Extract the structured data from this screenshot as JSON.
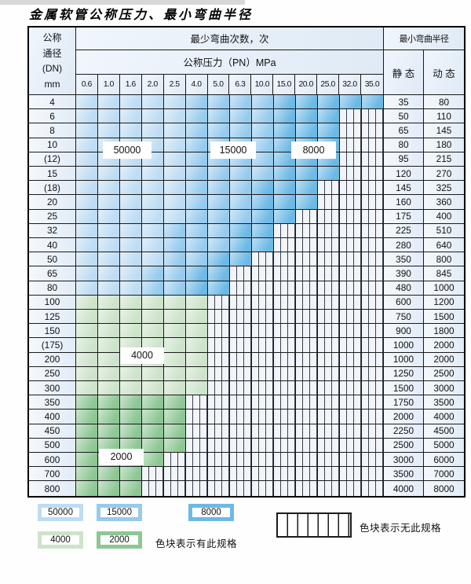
{
  "title": "金属软管公称压力、最小弯曲半径",
  "colors": {
    "b1": "#bedcf3",
    "b2": "#97cbee",
    "b3": "#6db9e6",
    "g1": "#cde3ca",
    "g2": "#8dc794"
  },
  "table": {
    "dn_header_lines": [
      "公称",
      "通径",
      "(DN)",
      "mm"
    ],
    "cycles_header": "最少弯曲次数，次",
    "pressure_header": "公称压力（PN）MPa",
    "radius_header": "最小弯曲半径",
    "static_label": "静 态",
    "dynamic_label": "动 态",
    "pressures": [
      "0.6",
      "1.0",
      "1.6",
      "2.0",
      "2.5",
      "4.0",
      "5.0",
      "6.3",
      "10.0",
      "15.0",
      "20.0",
      "25.0",
      "32.0",
      "35.0"
    ],
    "rows": [
      {
        "dn": "4",
        "segments": [
          [
            "b1",
            5
          ],
          [
            "b2",
            4
          ],
          [
            "b3",
            5
          ]
        ],
        "static": "35",
        "dynamic": "80"
      },
      {
        "dn": "6",
        "segments": [
          [
            "b1",
            5
          ],
          [
            "b2",
            4
          ],
          [
            "b3",
            3
          ]
        ],
        "static": "50",
        "dynamic": "110"
      },
      {
        "dn": "8",
        "segments": [
          [
            "b1",
            5
          ],
          [
            "b2",
            4
          ],
          [
            "b3",
            3
          ]
        ],
        "static": "65",
        "dynamic": "145"
      },
      {
        "dn": "10",
        "segments": [
          [
            "b1",
            5
          ],
          [
            "b2",
            4
          ],
          [
            "b3",
            3
          ]
        ],
        "static": "80",
        "dynamic": "180"
      },
      {
        "dn": "(12)",
        "segments": [
          [
            "b1",
            5
          ],
          [
            "b2",
            4
          ],
          [
            "b3",
            3
          ]
        ],
        "static": "95",
        "dynamic": "215"
      },
      {
        "dn": "15",
        "segments": [
          [
            "b1",
            5
          ],
          [
            "b2",
            4
          ],
          [
            "b3",
            3
          ]
        ],
        "static": "120",
        "dynamic": "270"
      },
      {
        "dn": "(18)",
        "segments": [
          [
            "b1",
            5
          ],
          [
            "b2",
            3
          ],
          [
            "b3",
            3
          ]
        ],
        "static": "145",
        "dynamic": "325"
      },
      {
        "dn": "20",
        "segments": [
          [
            "b1",
            5
          ],
          [
            "b2",
            3
          ],
          [
            "b3",
            3
          ]
        ],
        "static": "160",
        "dynamic": "360"
      },
      {
        "dn": "25",
        "segments": [
          [
            "b1",
            5
          ],
          [
            "b2",
            3
          ],
          [
            "b3",
            2
          ]
        ],
        "static": "175",
        "dynamic": "400"
      },
      {
        "dn": "32",
        "segments": [
          [
            "b1",
            4
          ],
          [
            "b2",
            3
          ],
          [
            "b3",
            2
          ]
        ],
        "static": "225",
        "dynamic": "510"
      },
      {
        "dn": "40",
        "segments": [
          [
            "b1",
            4
          ],
          [
            "b2",
            3
          ],
          [
            "b3",
            2
          ]
        ],
        "static": "280",
        "dynamic": "640"
      },
      {
        "dn": "50",
        "segments": [
          [
            "b1",
            4
          ],
          [
            "b2",
            2
          ],
          [
            "b3",
            2
          ]
        ],
        "static": "350",
        "dynamic": "800"
      },
      {
        "dn": "65",
        "segments": [
          [
            "b1",
            3
          ],
          [
            "b2",
            2
          ],
          [
            "b3",
            2
          ]
        ],
        "static": "390",
        "dynamic": "845"
      },
      {
        "dn": "80",
        "segments": [
          [
            "b1",
            3
          ],
          [
            "b2",
            2
          ],
          [
            "b3",
            2
          ]
        ],
        "static": "480",
        "dynamic": "1000"
      },
      {
        "dn": "100",
        "segments": [
          [
            "g1",
            6
          ]
        ],
        "static": "600",
        "dynamic": "1200"
      },
      {
        "dn": "125",
        "segments": [
          [
            "g1",
            6
          ]
        ],
        "static": "750",
        "dynamic": "1500"
      },
      {
        "dn": "150",
        "segments": [
          [
            "g1",
            6
          ]
        ],
        "static": "900",
        "dynamic": "1800"
      },
      {
        "dn": "(175)",
        "segments": [
          [
            "g1",
            6
          ]
        ],
        "static": "1000",
        "dynamic": "2000"
      },
      {
        "dn": "200",
        "segments": [
          [
            "g1",
            6
          ]
        ],
        "static": "1000",
        "dynamic": "2000"
      },
      {
        "dn": "250",
        "segments": [
          [
            "g1",
            6
          ]
        ],
        "static": "1250",
        "dynamic": "2500"
      },
      {
        "dn": "300",
        "segments": [
          [
            "g1",
            6
          ]
        ],
        "static": "1500",
        "dynamic": "3000"
      },
      {
        "dn": "350",
        "segments": [
          [
            "g2",
            5
          ]
        ],
        "static": "1750",
        "dynamic": "3500"
      },
      {
        "dn": "400",
        "segments": [
          [
            "g2",
            5
          ]
        ],
        "static": "2000",
        "dynamic": "4000"
      },
      {
        "dn": "450",
        "segments": [
          [
            "g2",
            5
          ]
        ],
        "static": "2250",
        "dynamic": "4500"
      },
      {
        "dn": "500",
        "segments": [
          [
            "g2",
            5
          ]
        ],
        "static": "2500",
        "dynamic": "5000"
      },
      {
        "dn": "600",
        "segments": [
          [
            "g2",
            4
          ]
        ],
        "static": "3000",
        "dynamic": "6000"
      },
      {
        "dn": "700",
        "segments": [
          [
            "g2",
            3
          ]
        ],
        "static": "3500",
        "dynamic": "7000"
      },
      {
        "dn": "800",
        "segments": [
          [
            "g2",
            3
          ]
        ],
        "static": "4000",
        "dynamic": "8000"
      }
    ]
  },
  "overlay_labels": {
    "blue1": "50000",
    "blue2": "15000",
    "blue3": "8000",
    "green1": "4000",
    "green2": "2000"
  },
  "legend": {
    "row1": [
      {
        "value": "50000",
        "shade": "b1"
      },
      {
        "value": "15000",
        "shade": "b2"
      },
      {
        "value": "8000",
        "shade": "b3"
      }
    ],
    "row2": [
      {
        "value": "4000",
        "shade": "g1"
      },
      {
        "value": "2000",
        "shade": "g2"
      }
    ],
    "no_spec_text": "色块表示无此规格",
    "has_spec_text": "色块表示有此规格"
  }
}
